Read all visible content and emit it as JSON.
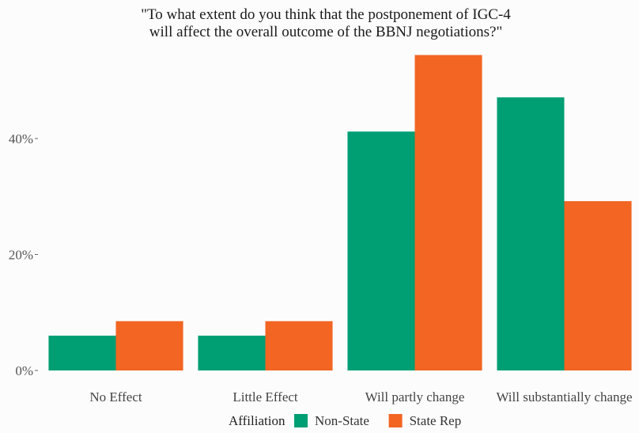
{
  "chart_data": {
    "type": "bar",
    "title": [
      "\"To what extent do you think that the postponement of IGC-4",
      "will affect the overall outcome of the BBNJ negotiations?\""
    ],
    "xlabel": "",
    "ylabel": "",
    "categories": [
      "No Effect",
      "Little Effect",
      "Will partly change",
      "Will substantially change"
    ],
    "series": [
      {
        "name": "Non-State",
        "color": "#009e73",
        "values": [
          6.0,
          6.0,
          41.2,
          47.1
        ]
      },
      {
        "name": "State Rep",
        "color": "#f26522",
        "values": [
          8.5,
          8.5,
          54.4,
          29.2
        ]
      }
    ],
    "ylim": [
      0,
      56
    ],
    "yticks": [
      0,
      20,
      40
    ],
    "ytick_labels": [
      "0%",
      "20%",
      "40%"
    ],
    "grid": false,
    "legend": {
      "title": "Affiliation",
      "position": "bottom"
    }
  }
}
